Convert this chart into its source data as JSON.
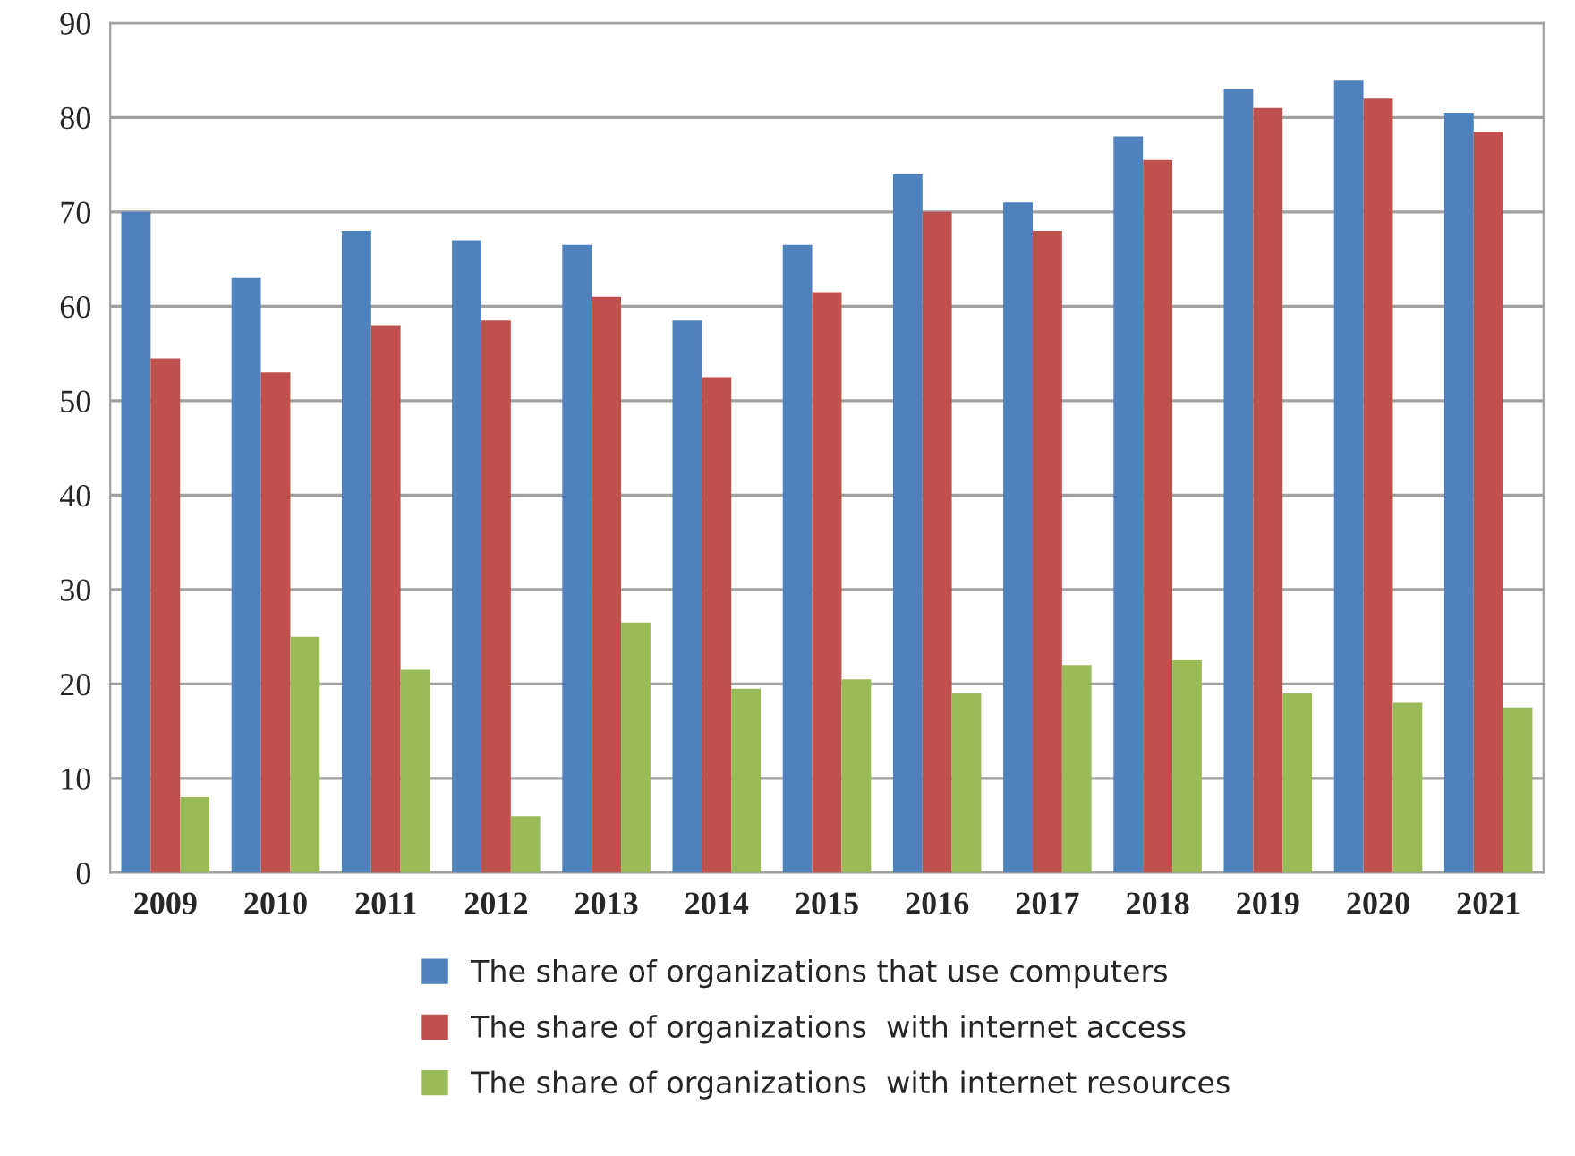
{
  "chart_data": {
    "type": "bar",
    "categories": [
      "2009",
      "2010",
      "2011",
      "2012",
      "2013",
      "2014",
      "2015",
      "2016",
      "2017",
      "2018",
      "2019",
      "2020",
      "2021"
    ],
    "series": [
      {
        "name": "The share of organizations that use computers",
        "color": "#4f81bd",
        "values": [
          70,
          63,
          68,
          67,
          66.5,
          58.5,
          66.5,
          74,
          71,
          78,
          83,
          84,
          80.5
        ]
      },
      {
        "name": "The share of organizations  with internet access",
        "color": "#c0504d",
        "values": [
          54.5,
          53,
          58,
          58.5,
          61,
          52.5,
          61.5,
          70,
          68,
          75.5,
          81,
          82,
          78.5
        ]
      },
      {
        "name": "The share of organizations  with internet resources",
        "color": "#9bbb59",
        "values": [
          8,
          25,
          21.5,
          6,
          26.5,
          19.5,
          20.5,
          19,
          22,
          22.5,
          19,
          18,
          17.5
        ]
      }
    ],
    "ylim": [
      0,
      90
    ],
    "yticks": [
      0,
      10,
      20,
      30,
      40,
      50,
      60,
      70,
      80,
      90
    ],
    "grid": "y",
    "legend": "bottom"
  }
}
